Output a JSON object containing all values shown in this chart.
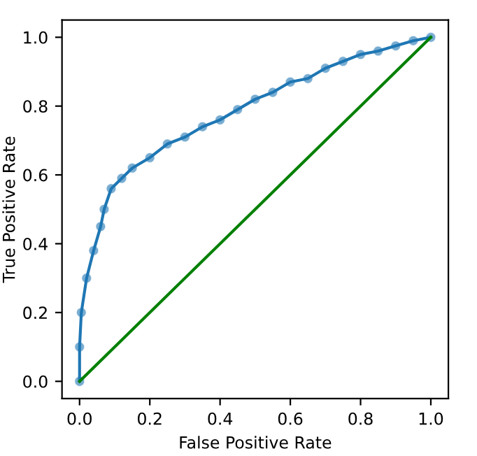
{
  "chart_data": {
    "type": "line",
    "xlabel": "False Positive Rate",
    "ylabel": "True Positive Rate",
    "xlim": [
      -0.05,
      1.05
    ],
    "ylim": [
      -0.05,
      1.05
    ],
    "xticks": [
      {
        "value": 0,
        "label": "0.0"
      },
      {
        "value": 0.2,
        "label": "0.2"
      },
      {
        "value": 0.4,
        "label": "0.4"
      },
      {
        "value": 0.6,
        "label": "0.6"
      },
      {
        "value": 0.8,
        "label": "0.8"
      },
      {
        "value": 1,
        "label": "1.0"
      }
    ],
    "yticks": [
      {
        "value": 0,
        "label": "0.0"
      },
      {
        "value": 0.2,
        "label": "0.2"
      },
      {
        "value": 0.4,
        "label": "0.4"
      },
      {
        "value": 0.6,
        "label": "0.6"
      },
      {
        "value": 0.8,
        "label": "0.8"
      },
      {
        "value": 1,
        "label": "1.0"
      }
    ],
    "grid": false,
    "legend": false,
    "series": [
      {
        "color": "#1f77b4",
        "marker": "circle",
        "x": [
          0,
          0,
          0.005,
          0.02,
          0.04,
          0.06,
          0.07,
          0.09,
          0.12,
          0.15,
          0.2,
          0.25,
          0.3,
          0.35,
          0.4,
          0.45,
          0.5,
          0.55,
          0.6,
          0.65,
          0.7,
          0.75,
          0.8,
          0.85,
          0.9,
          0.95,
          1.0
        ],
        "values": [
          0,
          0.1,
          0.2,
          0.3,
          0.38,
          0.45,
          0.5,
          0.56,
          0.59,
          0.62,
          0.65,
          0.69,
          0.71,
          0.74,
          0.76,
          0.79,
          0.82,
          0.84,
          0.87,
          0.88,
          0.91,
          0.93,
          0.95,
          0.96,
          0.975,
          0.99,
          1.0
        ]
      },
      {
        "color": "#008000",
        "marker": "none",
        "x": [
          0,
          1
        ],
        "values": [
          0,
          1
        ]
      }
    ]
  }
}
